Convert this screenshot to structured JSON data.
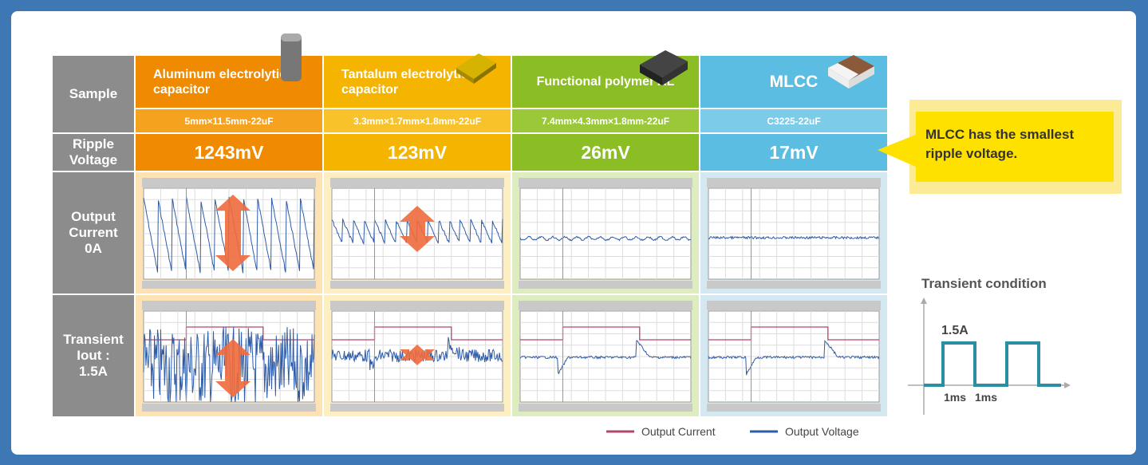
{
  "row_headers": [
    "Sample",
    "Ripple Voltage",
    "Output Current 0A",
    "Transient Iout : 1.5A"
  ],
  "columns": [
    {
      "name": "Aluminum electrolytic capacitor",
      "size": "5mm×11.5mm-22uF",
      "ripple": "1243mV"
    },
    {
      "name": "Tantalum electrolytic capacitor",
      "size": "3.3mm×1.7mm×1.8mm-22uF",
      "ripple": "123mV"
    },
    {
      "name": "Functional polymer AL",
      "size": "7.4mm×4.3mm×1.8mm-22uF",
      "ripple": "26mV"
    },
    {
      "name": "MLCC",
      "size": "C3225-22uF",
      "ripple": "17mV"
    }
  ],
  "callout": "MLCC has the smallest ripple voltage.",
  "transient_condition": {
    "title": "Transient condition",
    "current": "1.5A",
    "t_on": "1ms",
    "t_off": "1ms"
  },
  "legend": [
    "Output Current",
    "Output Voltage"
  ]
}
